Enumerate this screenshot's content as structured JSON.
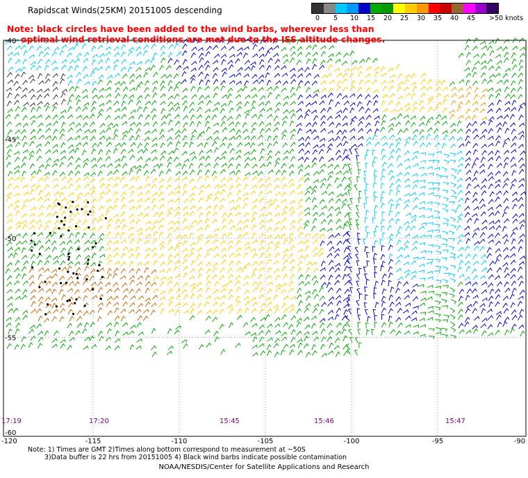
{
  "title": "Rapidscat Winds(25KM) 20151005 descending",
  "note": {
    "line1": "Note: black circles have been added to the wind barbs, wherever less than",
    "line2": "optimal wind retrieval conditions are met due to the ISS altitude changes."
  },
  "legend": {
    "unit": "knots",
    "ticks": [
      "0",
      "5",
      "10",
      "15",
      "20",
      "25",
      "30",
      "35",
      "40",
      "45",
      ">50 knots"
    ],
    "colors": [
      "#333333",
      "#888888",
      "#00ccff",
      "#0099ff",
      "#0000cc",
      "#00aa00",
      "#009900",
      "#ffff00",
      "#ffcc00",
      "#ff9900",
      "#ff0000",
      "#cc0000",
      "#996633",
      "#ff00ff",
      "#9900cc",
      "#330066"
    ]
  },
  "map": {
    "lon_labels": [
      "-120",
      "-115",
      "-110",
      "-105",
      "-100",
      "-95",
      "-90"
    ],
    "lat_labels": [
      "-40",
      "-45",
      "-50",
      "-55",
      "-60"
    ],
    "lon_range": [
      -120,
      -90
    ],
    "lat_range": [
      -60,
      -40
    ],
    "barb_colors": {
      "calm": "#333333",
      "light": "#00ccff",
      "moderate": "#0000cc",
      "fresh": "#00aa00",
      "strong": "#ffcc00",
      "gale": "#ff9900",
      "storm": "#cc6600"
    }
  },
  "times": [
    "17:19",
    "17:20",
    "15:45",
    "15:46",
    "15:47"
  ],
  "footnotes": {
    "line1": "Note: 1) Times are GMT 2)Times along bottom correspond to measurement at ~50S",
    "line2": "3)Data buffer is 22 hrs from 20151005 4) Black wind barbs indicate possible contamination"
  },
  "credit": "NOAA/NESDIS/Center for Satellite Applications and Research"
}
